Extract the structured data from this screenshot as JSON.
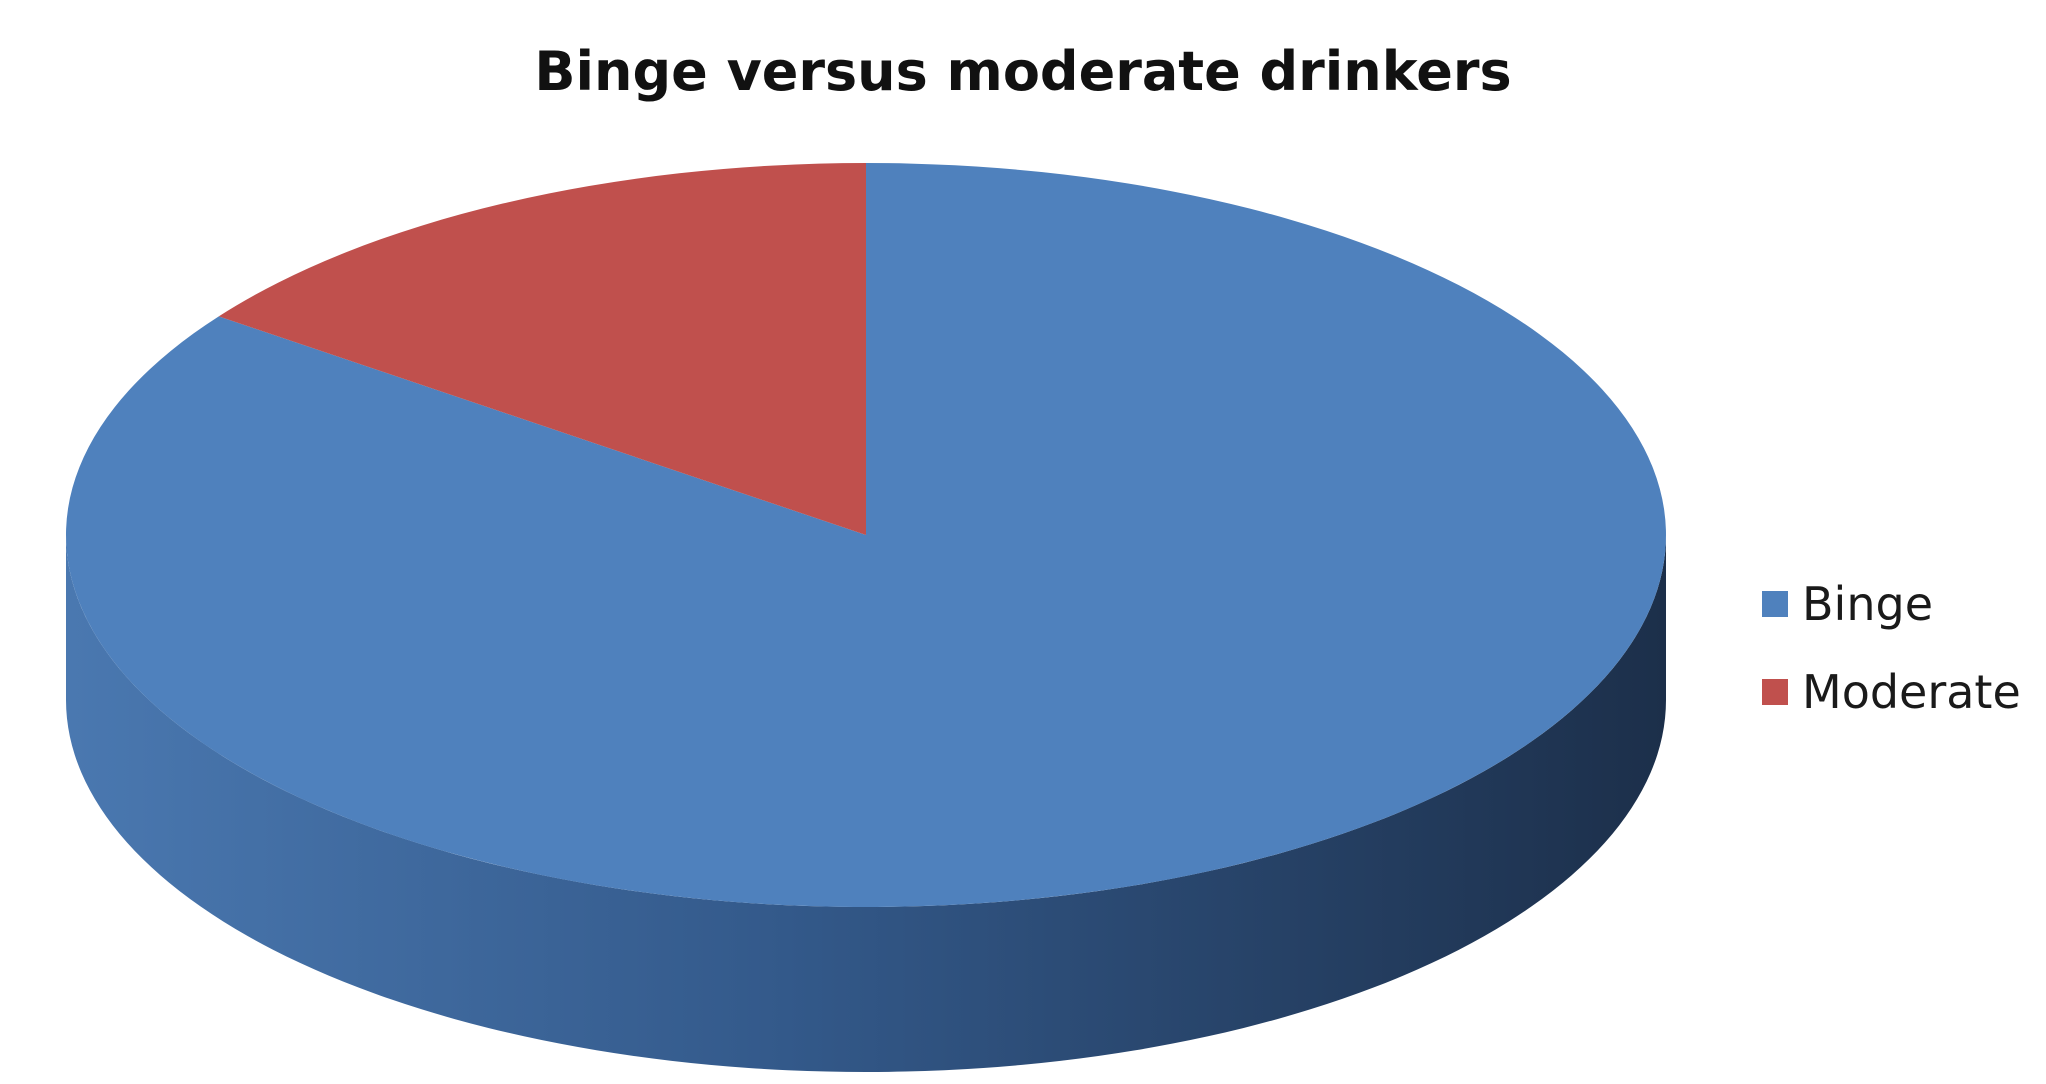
{
  "chart_data": {
    "type": "pie",
    "title": "Binge versus moderate drinkers",
    "categories": [
      "Binge",
      "Moderate"
    ],
    "values": [
      85,
      15
    ],
    "colors": [
      "#4f81bd",
      "#c0504d"
    ],
    "legend_position": "right",
    "style": "3d"
  }
}
